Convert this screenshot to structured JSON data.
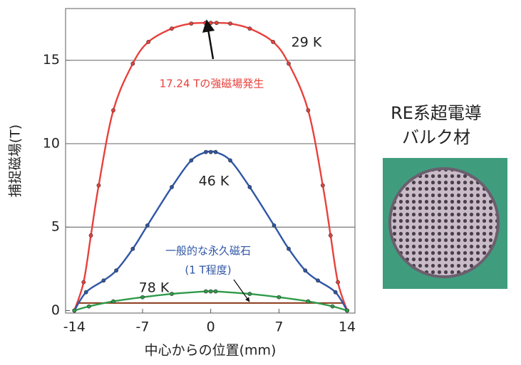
{
  "chart_data": {
    "type": "line",
    "xlabel": "中心からの位置(mm)",
    "ylabel": "捕捉磁場(T)",
    "xlim": [
      -14.9,
      14.8
    ],
    "ylim": [
      -0.15,
      18.1
    ],
    "xticks": [
      -14,
      -7,
      0,
      7,
      14
    ],
    "yticks": [
      0,
      5,
      10,
      15
    ],
    "grid": true,
    "series": [
      {
        "name": "29 K",
        "color": "#e8413c",
        "x": [
          -14,
          -13.05,
          -12.3,
          -11.5,
          -10,
          -8,
          -6.4,
          -4,
          -2,
          -0.55,
          0,
          0.6,
          2,
          4,
          6.4,
          8,
          10,
          11.5,
          12.3,
          13.05,
          14
        ],
        "values": [
          0,
          1.7,
          4.5,
          7.5,
          12,
          14.8,
          16.1,
          16.9,
          17.2,
          17.24,
          17.24,
          17.24,
          17.2,
          16.9,
          16.1,
          14.8,
          12,
          7.5,
          4.5,
          1.7,
          0
        ]
      },
      {
        "name": "46 K",
        "color": "#2f56a6",
        "x": [
          -14,
          -12.8,
          -11,
          -9.7,
          -8,
          -6.5,
          -4,
          -2,
          -0.5,
          0,
          0.5,
          2,
          4,
          6.5,
          8,
          9.7,
          11,
          12.8,
          14
        ],
        "values": [
          0,
          1.1,
          1.8,
          2.4,
          3.7,
          5.1,
          7.4,
          9.0,
          9.5,
          9.5,
          9.5,
          9.0,
          7.4,
          5.1,
          3.7,
          2.4,
          1.8,
          1.1,
          0
        ]
      },
      {
        "name": "78 K",
        "color": "#2e9a4a",
        "x": [
          -14,
          -12.5,
          -10,
          -7,
          -4,
          -0.5,
          0,
          0.5,
          4,
          7,
          10,
          12.5,
          14
        ],
        "values": [
          0,
          0.25,
          0.55,
          0.8,
          1.0,
          1.15,
          1.15,
          1.15,
          1.0,
          0.8,
          0.55,
          0.25,
          0
        ]
      }
    ],
    "hlines": [
      {
        "y": 0.45,
        "x": [
          -13.5,
          13.5
        ],
        "color": "#8b3a1a"
      }
    ],
    "annotations": [
      {
        "text": "17.24 Tの強磁場発生",
        "color": "#e8413c"
      },
      {
        "text": "一般的な永久磁石",
        "color": "#2f56a6"
      },
      {
        "text": "(1 T程度)",
        "color": "#2f56a6"
      }
    ]
  },
  "side_panel": {
    "title_lines": [
      "RE系超電導",
      "バルク材"
    ]
  }
}
